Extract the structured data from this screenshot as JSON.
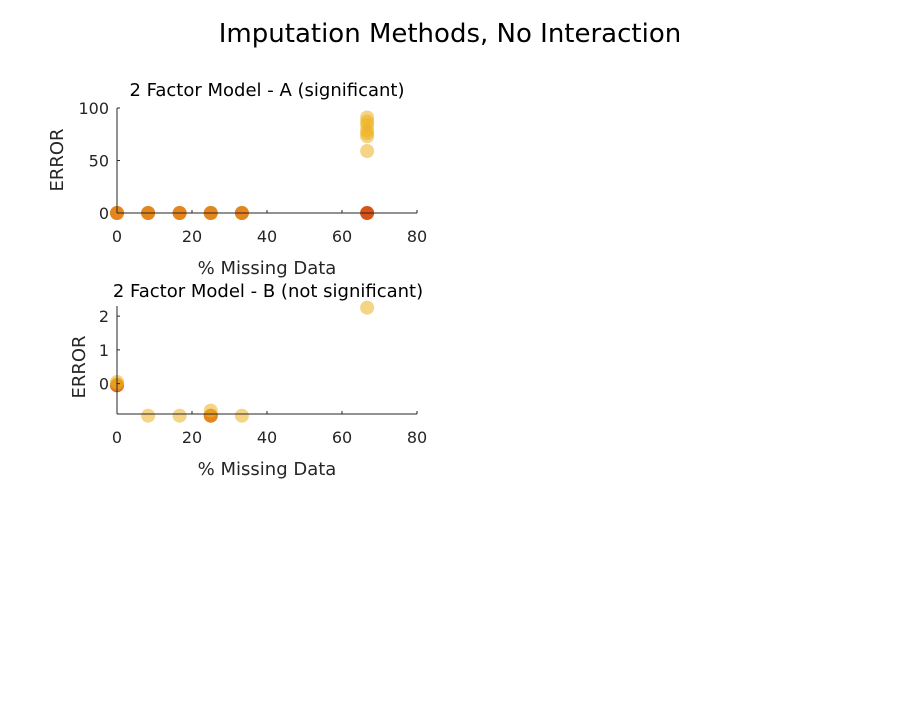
{
  "figure": {
    "title": "Imputation Methods, No Interaction"
  },
  "colors": {
    "orange": "#D95319",
    "yellow": "#EDB120",
    "axis": "#262626"
  },
  "chart_data": [
    {
      "type": "scatter",
      "title": "2 Factor Model - A (significant)",
      "xlabel": "% Missing Data",
      "ylabel": "ERROR",
      "xlim": [
        0,
        80
      ],
      "ylim": [
        0,
        100
      ],
      "xticks": [
        "0",
        "20",
        "40",
        "60",
        "80"
      ],
      "yticks": [
        "0",
        "50",
        "100"
      ],
      "grid": false,
      "series": [
        {
          "color": "#D95319",
          "points": [
            [
              0,
              0
            ],
            [
              8.3,
              0
            ],
            [
              16.7,
              0
            ],
            [
              25,
              0
            ],
            [
              33.3,
              0
            ],
            [
              66.7,
              0
            ]
          ]
        },
        {
          "color": "#EDB120",
          "points": [
            [
              0,
              0
            ],
            [
              8.3,
              0
            ],
            [
              16.7,
              0
            ],
            [
              25,
              0
            ],
            [
              33.3,
              0
            ],
            [
              66.7,
              91
            ],
            [
              66.7,
              87
            ],
            [
              66.7,
              84
            ],
            [
              66.7,
              79
            ],
            [
              66.7,
              76
            ],
            [
              66.7,
              73
            ],
            [
              66.7,
              59
            ]
          ]
        }
      ]
    },
    {
      "type": "scatter",
      "title": "2 Factor Model - B (not significant)",
      "xlabel": "% Missing Data",
      "ylabel": "ERROR",
      "xlim": [
        0,
        80
      ],
      "ylim": [
        -0.9,
        2.3
      ],
      "xticks": [
        "0",
        "20",
        "40",
        "60",
        "80"
      ],
      "yticks": [
        "0",
        "1",
        "2"
      ],
      "grid": false,
      "series": [
        {
          "color": "#D95319",
          "points": [
            [
              0,
              -0.05
            ],
            [
              25,
              -0.95
            ]
          ]
        },
        {
          "color": "#EDB120",
          "points": [
            [
              0,
              0.05
            ],
            [
              0,
              -0.02
            ],
            [
              8.3,
              -0.95
            ],
            [
              16.7,
              -0.95
            ],
            [
              25,
              -0.8
            ],
            [
              25,
              -0.95
            ],
            [
              33.3,
              -0.95
            ],
            [
              66.7,
              2.25
            ]
          ]
        }
      ]
    }
  ]
}
